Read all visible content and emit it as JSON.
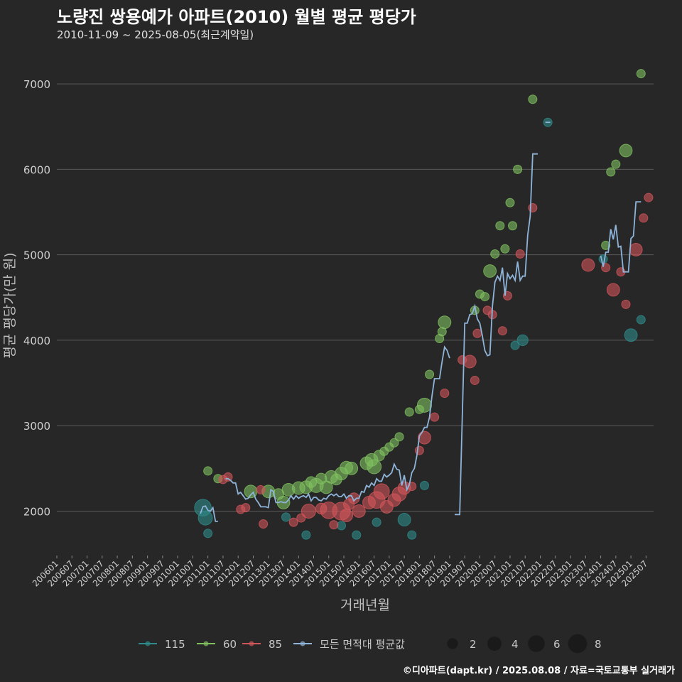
{
  "header": {
    "title": "노량진 쌍용예가 아파트(2010) 월별 평균 평당가",
    "subtitle": "2010-11-09 ~ 2025-08-05(최근계약일)"
  },
  "footer": "©디아파트(dapt.kr) / 2025.08.08 / 자료=국토교통부 실거래가",
  "colors": {
    "background": "#272727",
    "grid": "#5a5a5a",
    "s115": "#2e8b8b",
    "s60": "#7fbf5f",
    "s85": "#d0555a",
    "avg": "#8fb4d9"
  },
  "chart_data": {
    "type": "scatter",
    "title": "노량진 쌍용예가 아파트(2010) 월별 평균 평당가",
    "xlabel": "거래년월",
    "ylabel": "평균 평당가(만 원)",
    "xlim": [
      "2006-01",
      "2025-10"
    ],
    "ylim": [
      1480,
      7400
    ],
    "yticks": [
      2000,
      3000,
      4000,
      5000,
      6000,
      7000
    ],
    "xticks": [
      "200601",
      "200607",
      "200701",
      "200707",
      "200801",
      "200807",
      "200901",
      "200907",
      "201001",
      "201007",
      "201101",
      "201107",
      "201201",
      "201207",
      "201301",
      "201307",
      "201401",
      "201407",
      "201501",
      "201507",
      "201601",
      "201607",
      "201701",
      "201707",
      "201801",
      "201807",
      "201901",
      "201907",
      "202001",
      "202007",
      "202101",
      "202107",
      "202201",
      "202207",
      "202301",
      "202307",
      "202401",
      "202407",
      "202501",
      "202507"
    ],
    "legend": {
      "series": [
        "115",
        "60",
        "85",
        "모든 면적대 평균값"
      ],
      "size_label_values": [
        2,
        4,
        6,
        8
      ],
      "placement": "bottom"
    },
    "series": [
      {
        "name": "115",
        "points": [
          [
            "2010-11",
            2040,
            6
          ],
          [
            "2010-12",
            1920,
            4
          ],
          [
            "2011-01",
            1740,
            1
          ],
          [
            "2013-08",
            1930,
            1
          ],
          [
            "2014-04",
            1720,
            1
          ],
          [
            "2015-06",
            1830,
            1
          ],
          [
            "2015-12",
            1720,
            1
          ],
          [
            "2016-08",
            1870,
            1
          ],
          [
            "2017-07",
            1900,
            3
          ],
          [
            "2017-10",
            1720,
            1
          ],
          [
            "2018-03",
            2300,
            1
          ],
          [
            "2021-03",
            3940,
            1
          ],
          [
            "2021-06",
            4000,
            2
          ],
          [
            "2022-04",
            6550,
            1
          ],
          [
            "2024-02",
            4950,
            1
          ],
          [
            "2025-01",
            4060,
            3
          ],
          [
            "2025-05",
            4240,
            1
          ]
        ]
      },
      {
        "name": "60",
        "points": [
          [
            "2011-01",
            2470,
            1
          ],
          [
            "2011-05",
            2380,
            1
          ],
          [
            "2012-06",
            2230,
            3
          ],
          [
            "2013-01",
            2230,
            3
          ],
          [
            "2013-05",
            2200,
            2
          ],
          [
            "2013-07",
            2100,
            3
          ],
          [
            "2013-09",
            2250,
            3
          ],
          [
            "2014-01",
            2270,
            3
          ],
          [
            "2014-04",
            2280,
            3
          ],
          [
            "2014-06",
            2340,
            2
          ],
          [
            "2014-08",
            2300,
            4
          ],
          [
            "2014-10",
            2380,
            2
          ],
          [
            "2014-12",
            2280,
            3
          ],
          [
            "2015-02",
            2400,
            3
          ],
          [
            "2015-04",
            2370,
            2
          ],
          [
            "2015-06",
            2440,
            3
          ],
          [
            "2015-08",
            2510,
            3
          ],
          [
            "2015-10",
            2500,
            3
          ],
          [
            "2016-04",
            2560,
            3
          ],
          [
            "2016-06",
            2600,
            3
          ],
          [
            "2016-07",
            2520,
            4
          ],
          [
            "2016-09",
            2650,
            2
          ],
          [
            "2016-11",
            2700,
            1
          ],
          [
            "2017-01",
            2750,
            1
          ],
          [
            "2017-03",
            2800,
            1
          ],
          [
            "2017-05",
            2870,
            1
          ],
          [
            "2017-09",
            3160,
            1
          ],
          [
            "2018-01",
            3190,
            1
          ],
          [
            "2018-03",
            3240,
            4
          ],
          [
            "2018-05",
            3600,
            1
          ],
          [
            "2018-09",
            4020,
            1
          ],
          [
            "2018-10",
            4100,
            1
          ],
          [
            "2018-11",
            4210,
            3
          ],
          [
            "2019-11",
            4350,
            1
          ],
          [
            "2020-01",
            4540,
            1
          ],
          [
            "2020-03",
            4510,
            1
          ],
          [
            "2020-05",
            4810,
            3
          ],
          [
            "2020-07",
            5010,
            1
          ],
          [
            "2020-09",
            5340,
            1
          ],
          [
            "2020-11",
            5070,
            1
          ],
          [
            "2021-01",
            5610,
            1
          ],
          [
            "2021-02",
            5340,
            1
          ],
          [
            "2021-04",
            6000,
            1
          ],
          [
            "2021-10",
            6820,
            1
          ],
          [
            "2024-03",
            5110,
            1
          ],
          [
            "2024-05",
            5970,
            1
          ],
          [
            "2024-07",
            6060,
            1
          ],
          [
            "2024-11",
            6220,
            3
          ],
          [
            "2025-05",
            7120,
            1
          ]
        ]
      },
      {
        "name": "85",
        "points": [
          [
            "2011-07",
            2370,
            1
          ],
          [
            "2011-09",
            2400,
            1
          ],
          [
            "2012-02",
            2020,
            1
          ],
          [
            "2012-04",
            2040,
            1
          ],
          [
            "2012-10",
            2250,
            1
          ],
          [
            "2012-11",
            1850,
            1
          ],
          [
            "2013-11",
            1870,
            1
          ],
          [
            "2014-02",
            1920,
            1
          ],
          [
            "2014-05",
            2000,
            4
          ],
          [
            "2014-10",
            2030,
            2
          ],
          [
            "2015-01",
            2010,
            6
          ],
          [
            "2015-03",
            1840,
            1
          ],
          [
            "2015-06",
            2000,
            7
          ],
          [
            "2015-08",
            1950,
            3
          ],
          [
            "2015-09",
            2080,
            2
          ],
          [
            "2015-11",
            2150,
            2
          ],
          [
            "2016-01",
            2000,
            3
          ],
          [
            "2016-05",
            2100,
            3
          ],
          [
            "2016-08",
            2130,
            6
          ],
          [
            "2016-10",
            2230,
            5
          ],
          [
            "2016-12",
            2050,
            3
          ],
          [
            "2017-03",
            2130,
            3
          ],
          [
            "2017-05",
            2200,
            4
          ],
          [
            "2017-07",
            2270,
            3
          ],
          [
            "2017-10",
            2290,
            1
          ],
          [
            "2018-01",
            2710,
            1
          ],
          [
            "2018-03",
            2860,
            3
          ],
          [
            "2018-07",
            3100,
            1
          ],
          [
            "2018-11",
            3380,
            1
          ],
          [
            "2019-06",
            3770,
            1
          ],
          [
            "2019-09",
            3750,
            3
          ],
          [
            "2019-11",
            3530,
            1
          ],
          [
            "2019-12",
            4080,
            1
          ],
          [
            "2020-04",
            4350,
            1
          ],
          [
            "2020-06",
            4300,
            1
          ],
          [
            "2020-10",
            4110,
            1
          ],
          [
            "2020-12",
            4520,
            1
          ],
          [
            "2021-05",
            5010,
            1
          ],
          [
            "2021-10",
            5550,
            1
          ],
          [
            "2023-08",
            4880,
            3
          ],
          [
            "2024-03",
            4850,
            1
          ],
          [
            "2024-06",
            4590,
            3
          ],
          [
            "2024-09",
            4800,
            1
          ],
          [
            "2024-11",
            4420,
            1
          ],
          [
            "2025-03",
            5060,
            3
          ],
          [
            "2025-06",
            5430,
            1
          ],
          [
            "2025-08",
            5670,
            1
          ]
        ]
      }
    ],
    "average": [
      [
        [
          "2010-10",
          1970
        ],
        [
          "2010-11",
          2050
        ],
        [
          "2010-12",
          2060
        ],
        [
          "2011-01",
          2010
        ],
        [
          "2011-02",
          2000
        ],
        [
          "2011-03",
          2040
        ],
        [
          "2011-04",
          1880
        ],
        [
          "2011-05",
          1880
        ]
      ],
      [
        [
          "2011-08",
          2380
        ],
        [
          "2011-09",
          2380
        ],
        [
          "2011-10",
          2360
        ],
        [
          "2011-11",
          2330
        ],
        [
          "2011-12",
          2330
        ],
        [
          "2012-01",
          2200
        ],
        [
          "2012-02",
          2220
        ],
        [
          "2012-03",
          2180
        ],
        [
          "2012-04",
          2140
        ],
        [
          "2012-05",
          2150
        ],
        [
          "2012-06",
          2190
        ],
        [
          "2012-07",
          2220
        ],
        [
          "2012-08",
          2140
        ],
        [
          "2012-09",
          2100
        ],
        [
          "2012-10",
          2050
        ],
        [
          "2012-11",
          2050
        ],
        [
          "2012-12",
          2050
        ],
        [
          "2013-01",
          2040
        ],
        [
          "2013-02",
          2250
        ],
        [
          "2013-03",
          2230
        ],
        [
          "2013-04",
          2100
        ],
        [
          "2013-05",
          2100
        ],
        [
          "2013-06",
          2110
        ],
        [
          "2013-07",
          2100
        ],
        [
          "2013-08",
          2100
        ],
        [
          "2013-09",
          2130
        ],
        [
          "2013-10",
          2180
        ],
        [
          "2013-11",
          2140
        ],
        [
          "2013-12",
          2180
        ],
        [
          "2014-01",
          2150
        ],
        [
          "2014-02",
          2170
        ],
        [
          "2014-03",
          2180
        ],
        [
          "2014-04",
          2160
        ],
        [
          "2014-05",
          2200
        ],
        [
          "2014-06",
          2120
        ],
        [
          "2014-07",
          2160
        ],
        [
          "2014-08",
          2160
        ],
        [
          "2014-09",
          2130
        ],
        [
          "2014-10",
          2120
        ],
        [
          "2014-11",
          2150
        ],
        [
          "2014-12",
          2140
        ],
        [
          "2015-01",
          2180
        ],
        [
          "2015-02",
          2200
        ],
        [
          "2015-03",
          2180
        ],
        [
          "2015-04",
          2200
        ],
        [
          "2015-05",
          2170
        ],
        [
          "2015-06",
          2170
        ],
        [
          "2015-07",
          2200
        ],
        [
          "2015-08",
          2150
        ],
        [
          "2015-09",
          2180
        ],
        [
          "2015-10",
          2180
        ],
        [
          "2015-11",
          2120
        ],
        [
          "2015-12",
          2150
        ],
        [
          "2016-01",
          2150
        ],
        [
          "2016-02",
          2230
        ],
        [
          "2016-03",
          2220
        ],
        [
          "2016-04",
          2300
        ],
        [
          "2016-05",
          2280
        ],
        [
          "2016-06",
          2330
        ],
        [
          "2016-07",
          2300
        ],
        [
          "2016-08",
          2380
        ],
        [
          "2016-09",
          2350
        ],
        [
          "2016-10",
          2350
        ],
        [
          "2016-11",
          2430
        ],
        [
          "2016-12",
          2400
        ],
        [
          "2017-01",
          2420
        ],
        [
          "2017-02",
          2450
        ],
        [
          "2017-03",
          2550
        ],
        [
          "2017-04",
          2490
        ],
        [
          "2017-05",
          2480
        ],
        [
          "2017-06",
          2300
        ],
        [
          "2017-07",
          2420
        ],
        [
          "2017-08",
          2250
        ],
        [
          "2017-09",
          2310
        ],
        [
          "2017-10",
          2450
        ],
        [
          "2017-11",
          2500
        ],
        [
          "2017-12",
          2650
        ],
        [
          "2018-01",
          2880
        ],
        [
          "2018-02",
          2920
        ],
        [
          "2018-03",
          2980
        ],
        [
          "2018-04",
          2980
        ],
        [
          "2018-05",
          3100
        ],
        [
          "2018-06",
          3350
        ],
        [
          "2018-07",
          3550
        ],
        [
          "2018-08",
          3550
        ],
        [
          "2018-09",
          3550
        ],
        [
          "2018-10",
          3750
        ],
        [
          "2018-11",
          3920
        ],
        [
          "2018-12",
          3880
        ],
        [
          "2019-01",
          3790
        ]
      ],
      [
        [
          "2019-03",
          1960
        ],
        [
          "2019-04",
          1960
        ],
        [
          "2019-05",
          1960
        ],
        [
          "2019-07",
          4200
        ],
        [
          "2019-08",
          4200
        ],
        [
          "2019-09",
          4300
        ],
        [
          "2019-10",
          4310
        ],
        [
          "2019-11",
          4400
        ],
        [
          "2019-12",
          4250
        ],
        [
          "2020-01",
          4200
        ],
        [
          "2020-02",
          4050
        ],
        [
          "2020-03",
          3880
        ],
        [
          "2020-04",
          3820
        ],
        [
          "2020-05",
          3830
        ],
        [
          "2020-06",
          4400
        ],
        [
          "2020-07",
          4680
        ],
        [
          "2020-08",
          4750
        ],
        [
          "2020-09",
          4700
        ],
        [
          "2020-10",
          4850
        ],
        [
          "2020-11",
          4520
        ],
        [
          "2020-12",
          4780
        ],
        [
          "2021-01",
          4720
        ],
        [
          "2021-02",
          4760
        ],
        [
          "2021-03",
          4700
        ],
        [
          "2021-04",
          4920
        ],
        [
          "2021-05",
          4700
        ],
        [
          "2021-06",
          4750
        ],
        [
          "2021-07",
          4750
        ],
        [
          "2021-08",
          5230
        ],
        [
          "2021-09",
          5450
        ],
        [
          "2021-10",
          6180
        ],
        [
          "2021-11",
          6180
        ],
        [
          "2021-12",
          6180
        ]
      ],
      [
        [
          "2022-03",
          6550
        ],
        [
          "2022-04",
          6550
        ],
        [
          "2022-05",
          6550
        ]
      ],
      [
        [
          "2024-01",
          4990
        ],
        [
          "2024-02",
          4860
        ],
        [
          "2024-03",
          5030
        ],
        [
          "2024-04",
          5030
        ],
        [
          "2024-05",
          5300
        ],
        [
          "2024-06",
          5180
        ],
        [
          "2024-07",
          5350
        ],
        [
          "2024-08",
          5090
        ],
        [
          "2024-09",
          5100
        ],
        [
          "2024-10",
          4800
        ],
        [
          "2024-11",
          4800
        ],
        [
          "2024-12",
          4800
        ],
        [
          "2025-01",
          5190
        ],
        [
          "2025-02",
          5220
        ],
        [
          "2025-03",
          5620
        ],
        [
          "2025-04",
          5620
        ],
        [
          "2025-05",
          5620
        ]
      ]
    ]
  }
}
